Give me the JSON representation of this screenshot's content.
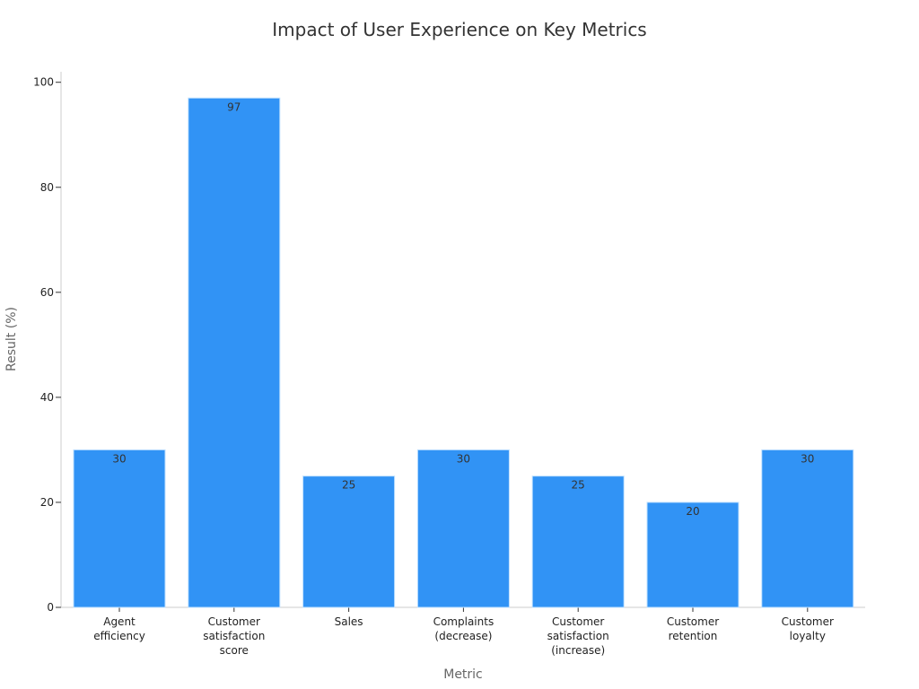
{
  "chart_data": {
    "type": "bar",
    "title": "Impact of User Experience on Key Metrics",
    "xlabel": "Metric",
    "ylabel": "Result (%)",
    "categories": [
      [
        "Agent",
        "efficiency"
      ],
      [
        "Customer",
        "satisfaction",
        "score"
      ],
      [
        "Sales"
      ],
      [
        "Complaints",
        "(decrease)"
      ],
      [
        "Customer",
        "satisfaction",
        "(increase)"
      ],
      [
        "Customer",
        "retention"
      ],
      [
        "Customer",
        "loyalty"
      ]
    ],
    "values": [
      30,
      97,
      25,
      30,
      25,
      20,
      30
    ],
    "data_labels": [
      "30",
      "97",
      "25",
      "30",
      "25",
      "20",
      "30"
    ],
    "ylim": [
      0,
      102
    ],
    "yticks": [
      0,
      20,
      40,
      60,
      80,
      100
    ],
    "grid": false,
    "legend": "none",
    "bar_color": "#3193f5"
  }
}
